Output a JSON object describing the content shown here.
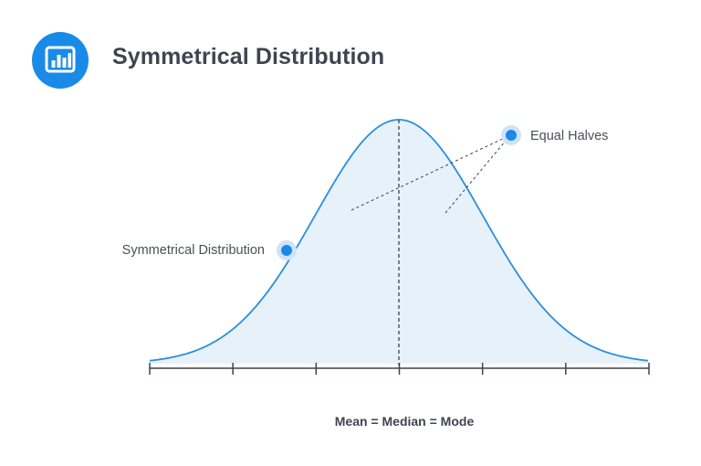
{
  "header": {
    "title": "Symmetrical Distribution",
    "icon": "bar-chart-icon"
  },
  "diagram": {
    "labels": {
      "left_point": "Symmetrical Distribution",
      "right_point": "Equal Halves"
    },
    "caption": "Mean = Median = Mode",
    "axis_tick_count": 7
  },
  "colors": {
    "accent": "#1a8ae8",
    "curve": "#2b8fdc",
    "fill": "#e6f1fa",
    "point_halo": "#cfe3f7",
    "text_dark": "#3f4450",
    "axis": "#3d424c"
  }
}
